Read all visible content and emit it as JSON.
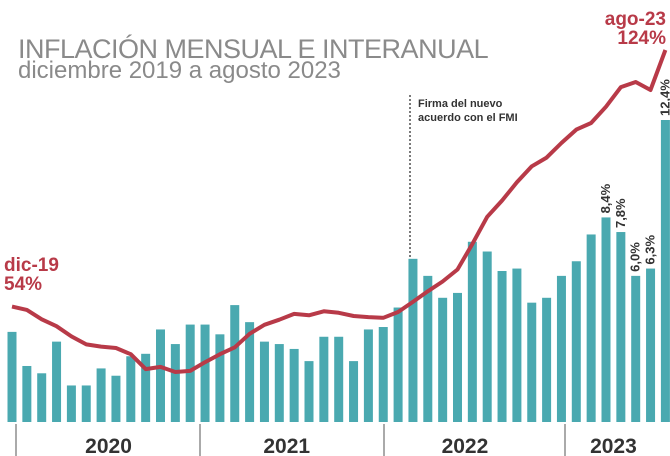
{
  "chart_data": {
    "type": "bar",
    "title": "INFLACIÓN MENSUAL E INTERANUAL",
    "subtitle": "diciembre 2019 a agosto 2023",
    "year_labels": [
      "2020",
      "2021",
      "2022",
      "2023"
    ],
    "annotations": [
      "dic-19",
      "ago-23"
    ],
    "event_note": [
      "Firma del nuevo",
      "acuerdo con el FMI"
    ],
    "series": [
      {
        "type": "bar",
        "color": "#4aa9b0",
        "values": [
          3.7,
          2.3,
          2.0,
          3.3,
          1.5,
          1.5,
          2.2,
          1.9,
          2.7,
          2.8,
          3.8,
          3.2,
          4.0,
          4.0,
          3.6,
          4.8,
          4.1,
          3.3,
          3.2,
          3.0,
          2.5,
          3.5,
          3.5,
          2.5,
          3.8,
          3.9,
          4.7,
          6.7,
          6.0,
          5.1,
          5.3,
          7.4,
          7.0,
          6.2,
          6.3,
          4.9,
          5.1,
          6.0,
          6.6,
          7.7,
          8.4,
          7.8,
          6.0,
          6.3,
          12.4
        ],
        "value_labels": [
          null,
          null,
          null,
          null,
          null,
          null,
          null,
          null,
          null,
          null,
          null,
          null,
          null,
          null,
          null,
          null,
          null,
          null,
          null,
          null,
          null,
          null,
          null,
          null,
          null,
          null,
          null,
          null,
          null,
          null,
          null,
          null,
          null,
          null,
          null,
          null,
          null,
          null,
          null,
          null,
          "8,4%",
          "7,8%",
          "6,0%",
          "6,3%",
          "12,4%"
        ]
      },
      {
        "type": "line",
        "color": "#b83a48",
        "values": [
          53.8,
          52.9,
          50.3,
          48.4,
          45.6,
          43.4,
          42.8,
          42.4,
          40.7,
          36.6,
          37.2,
          35.8,
          36.1,
          38.5,
          40.7,
          42.6,
          46.3,
          48.8,
          50.2,
          51.8,
          51.4,
          52.5,
          52.1,
          51.2,
          50.9,
          50.7,
          52.3,
          55.1,
          58.0,
          60.7,
          64.0,
          71.0,
          78.5,
          83.0,
          88.0,
          92.4,
          94.8,
          98.8,
          102.5,
          104.3,
          108.8,
          114.2,
          115.6,
          113.4,
          124.4
        ],
        "value_labels": [
          "54%",
          null,
          null,
          null,
          null,
          null,
          null,
          null,
          null,
          null,
          null,
          null,
          null,
          null,
          null,
          null,
          null,
          null,
          null,
          null,
          null,
          null,
          null,
          null,
          null,
          null,
          null,
          null,
          null,
          null,
          null,
          null,
          null,
          null,
          null,
          null,
          null,
          null,
          null,
          null,
          null,
          null,
          null,
          null,
          "124%"
        ]
      }
    ]
  }
}
